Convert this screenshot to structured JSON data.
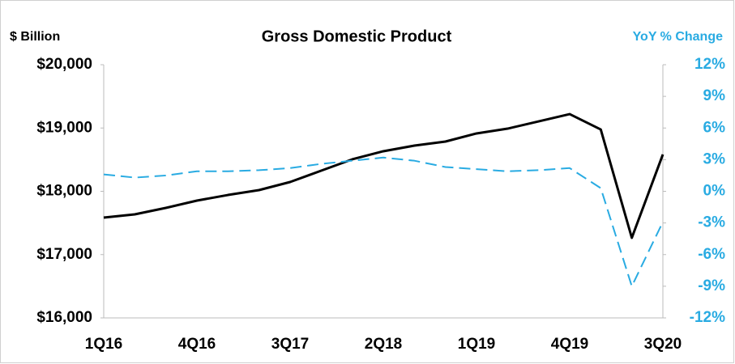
{
  "chart_data": {
    "type": "line",
    "title": "Gross Domestic Product",
    "y_label": "$ Billion",
    "y2_label": "YoY % Change",
    "categories": [
      "1Q16",
      null,
      null,
      "4Q16",
      null,
      null,
      "3Q17",
      null,
      null,
      "2Q18",
      null,
      null,
      "1Q19",
      null,
      null,
      "4Q19",
      null,
      null,
      "3Q20"
    ],
    "series": [
      {
        "name": "GDP",
        "color": "#000000",
        "values": [
          17585,
          17636,
          17738,
          17853,
          17942,
          18019,
          18147,
          18326,
          18505,
          18633,
          18722,
          18786,
          18914,
          18990,
          19105,
          19220,
          18977,
          17265,
          18582
        ]
      },
      {
        "name": "YoY % Change",
        "color": "#29abe2",
        "dashed": true,
        "axis": "y2",
        "values": [
          1.6,
          1.3,
          1.5,
          1.9,
          1.9,
          2.0,
          2.2,
          2.6,
          2.9,
          3.2,
          2.9,
          2.3,
          2.1,
          1.9,
          2.0,
          2.2,
          0.3,
          -9.0,
          -2.9
        ]
      }
    ],
    "ylim": [
      16000,
      20000
    ],
    "yticks": [
      {
        "value": 16000,
        "label": "$16,000"
      },
      {
        "value": 17000,
        "label": "$17,000"
      },
      {
        "value": 18000,
        "label": "$18,000"
      },
      {
        "value": 19000,
        "label": "$19,000"
      },
      {
        "value": 20000,
        "label": "$20,000"
      }
    ],
    "y2lim": [
      -12,
      12
    ],
    "y2ticks": [
      {
        "value": -12,
        "label": "-12%"
      },
      {
        "value": -9,
        "label": "-9%"
      },
      {
        "value": -6,
        "label": "-6%"
      },
      {
        "value": -3,
        "label": "-3%"
      },
      {
        "value": 0,
        "label": "0%"
      },
      {
        "value": 3,
        "label": "3%"
      },
      {
        "value": 6,
        "label": "6%"
      },
      {
        "value": 9,
        "label": "9%"
      },
      {
        "value": 12,
        "label": "12%"
      }
    ],
    "y2color": "#29abe2"
  }
}
